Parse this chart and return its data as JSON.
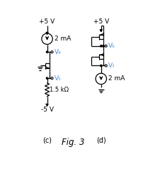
{
  "bg_color": "#ffffff",
  "line_color": "#000000",
  "label_color": "#4a90d9",
  "fig_label_color": "#000000",
  "title": "Fig. 3",
  "circuit_c_label": "(c)",
  "circuit_d_label": "(d)",
  "plus5v_c": "+5 V",
  "minus5v_c": "-5 V",
  "plus5v_d": "+5 V",
  "current_c": "2 mA",
  "current_d": "2 mA",
  "v4": "V₄",
  "v5": "V₅",
  "v6": "V₆",
  "v7": "V₇",
  "resistor": "1.5 kΩ"
}
